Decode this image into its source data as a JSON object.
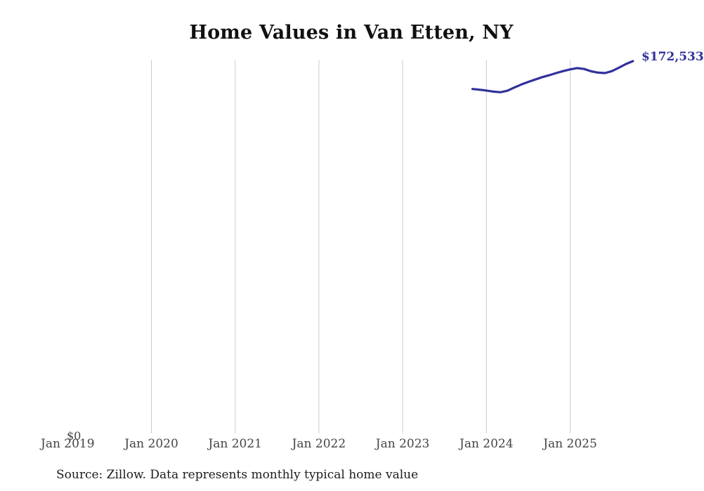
{
  "title": "Home Values in Van Etten, NY",
  "y_axis": {
    "zero_label": "$0"
  },
  "end_label": "$172,533",
  "source_note": "Source: Zillow. Data represents monthly typical home value",
  "colors": {
    "line": "#31319C",
    "end_label_text": "#31319C",
    "gridline": "#cccccc",
    "tick_text": "#454545",
    "title_text": "#111111",
    "source_text": "#1c1c1c",
    "background": "#ffffff"
  },
  "chart_data": {
    "type": "line",
    "title": "Home Values in Van Etten, NY",
    "xlabel": "",
    "ylabel": "",
    "ylim": [
      0,
      172533
    ],
    "grid": "vertical-yearly",
    "x_ticks": [
      "Jan 2019",
      "Jan 2020",
      "Jan 2021",
      "Jan 2022",
      "Jan 2023",
      "Jan 2024",
      "Jan 2025"
    ],
    "x_tick_has_gridline": [
      false,
      true,
      true,
      true,
      true,
      true,
      true
    ],
    "y_tick_labels": [
      "$0"
    ],
    "end_value_label": "$172,533",
    "series": [
      {
        "name": "Monthly typical home value",
        "start_month": "2023-11",
        "x": [
          "Nov 2023",
          "Dec 2023",
          "Jan 2024",
          "Feb 2024",
          "Mar 2024",
          "Apr 2024",
          "May 2024",
          "Jun 2024",
          "Jul 2024",
          "Aug 2024",
          "Sep 2024",
          "Oct 2024",
          "Nov 2024",
          "Dec 2024",
          "Jan 2025",
          "Feb 2025",
          "Mar 2025",
          "Apr 2025",
          "May 2025",
          "Jun 2025",
          "Jul 2025",
          "Aug 2025",
          "Sep 2025",
          "Oct 2025"
        ],
        "values": [
          159600,
          159300,
          158900,
          158400,
          158100,
          158800,
          160300,
          161700,
          162900,
          164000,
          165100,
          166000,
          167000,
          167900,
          168700,
          169300,
          168900,
          167800,
          167200,
          167000,
          167900,
          169500,
          171200,
          172533
        ]
      }
    ],
    "legend": "none"
  }
}
